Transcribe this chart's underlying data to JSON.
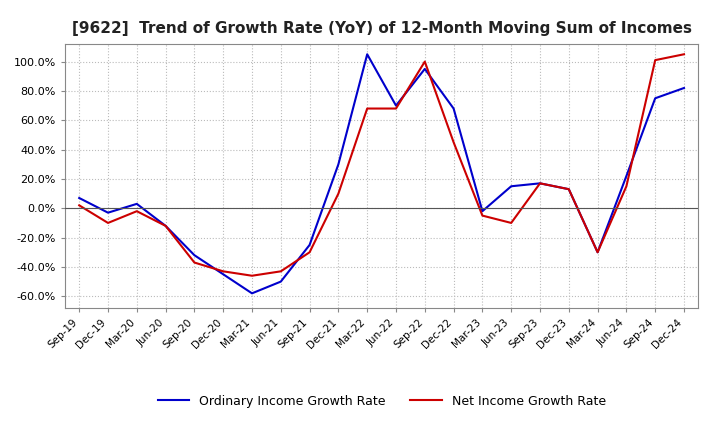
{
  "title": "[9622]  Trend of Growth Rate (YoY) of 12-Month Moving Sum of Incomes",
  "title_fontsize": 11,
  "ylim": [
    -0.68,
    1.12
  ],
  "yticks": [
    -0.6,
    -0.4,
    -0.2,
    0.0,
    0.2,
    0.4,
    0.6,
    0.8,
    1.0
  ],
  "background_color": "#ffffff",
  "grid_color": "#bbbbbb",
  "ordinary_color": "#0000cc",
  "net_color": "#cc0000",
  "x_labels": [
    "Sep-19",
    "Dec-19",
    "Mar-20",
    "Jun-20",
    "Sep-20",
    "Dec-20",
    "Mar-21",
    "Jun-21",
    "Sep-21",
    "Dec-21",
    "Mar-22",
    "Jun-22",
    "Sep-22",
    "Dec-22",
    "Mar-23",
    "Jun-23",
    "Sep-23",
    "Dec-23",
    "Mar-24",
    "Jun-24",
    "Sep-24",
    "Dec-24"
  ],
  "ordinary_income": [
    0.07,
    -0.03,
    0.03,
    -0.12,
    -0.32,
    -0.45,
    -0.58,
    -0.5,
    -0.25,
    0.3,
    1.05,
    0.7,
    0.95,
    0.68,
    -0.02,
    0.15,
    0.17,
    0.13,
    -0.3,
    0.22,
    0.75,
    0.82
  ],
  "net_income": [
    0.02,
    -0.1,
    -0.02,
    -0.12,
    -0.37,
    -0.43,
    -0.46,
    -0.43,
    -0.3,
    0.1,
    0.68,
    0.68,
    1.0,
    0.45,
    -0.05,
    -0.1,
    0.17,
    0.13,
    -0.3,
    0.15,
    1.01,
    1.05
  ],
  "legend_ordinary": "Ordinary Income Growth Rate",
  "legend_net": "Net Income Growth Rate"
}
